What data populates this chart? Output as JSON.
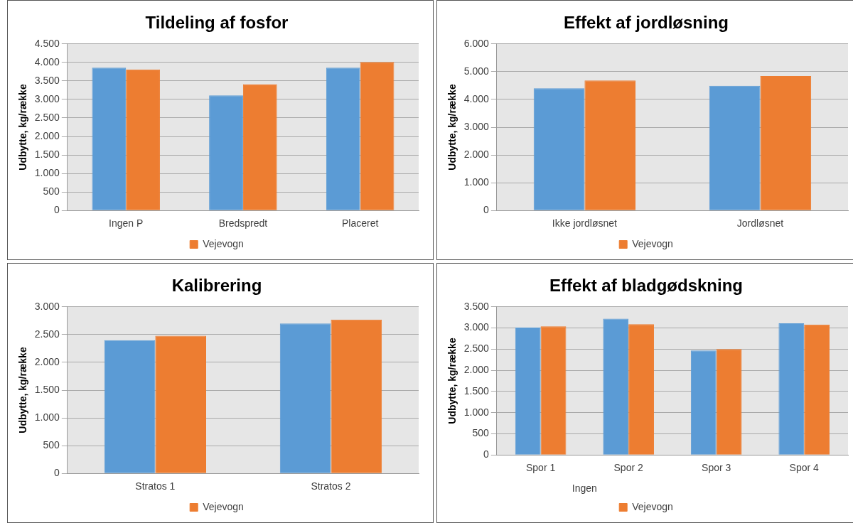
{
  "chart_data": [
    {
      "type": "bar",
      "title": "Tildeling af fosfor",
      "ylabel": "Udbytte, kg/række",
      "categories": [
        "Ingen P",
        "Bredspredt",
        "Placeret"
      ],
      "series": [
        {
          "color": "#5b9bd5",
          "values": [
            3860,
            3110,
            3860
          ]
        },
        {
          "name": "Vejevogn",
          "color": "#ed7d31",
          "values": [
            3810,
            3410,
            4010
          ]
        }
      ],
      "ylim": [
        0,
        4500
      ],
      "yticks": [
        {
          "value": 0,
          "label": "0"
        },
        {
          "value": 500,
          "label": "500"
        },
        {
          "value": 1000,
          "label": "1.000"
        },
        {
          "value": 1500,
          "label": "1.500"
        },
        {
          "value": 2000,
          "label": "2.000"
        },
        {
          "value": 2500,
          "label": "2.500"
        },
        {
          "value": 3000,
          "label": "3.000"
        },
        {
          "value": 3500,
          "label": "3.500"
        },
        {
          "value": 4000,
          "label": "4.000"
        },
        {
          "value": 4500,
          "label": "4.500"
        }
      ],
      "grid": "y",
      "legend": "bottom"
    },
    {
      "type": "bar",
      "title": "Effekt af jordløsning",
      "ylabel": "Udbytte, kg/række",
      "categories": [
        "Ikke jordløsnet",
        "Jordløsnet"
      ],
      "series": [
        {
          "color": "#5b9bd5",
          "values": [
            4400,
            4490
          ]
        },
        {
          "name": "Vejevogn",
          "color": "#ed7d31",
          "values": [
            4680,
            4840
          ]
        }
      ],
      "ylim": [
        0,
        6000
      ],
      "yticks": [
        {
          "value": 0,
          "label": "0"
        },
        {
          "value": 1000,
          "label": "1.000"
        },
        {
          "value": 2000,
          "label": "2.000"
        },
        {
          "value": 3000,
          "label": "3.000"
        },
        {
          "value": 4000,
          "label": "4.000"
        },
        {
          "value": 5000,
          "label": "5.000"
        },
        {
          "value": 6000,
          "label": "6.000"
        }
      ],
      "grid": "y",
      "legend": "bottom"
    },
    {
      "type": "bar",
      "title": "Kalibrering",
      "ylabel": "Udbytte, kg/række",
      "categories": [
        "Stratos 1",
        "Stratos 2"
      ],
      "series": [
        {
          "color": "#5b9bd5",
          "values": [
            2400,
            2700
          ]
        },
        {
          "name": "Vejevogn",
          "color": "#ed7d31",
          "values": [
            2480,
            2770
          ]
        }
      ],
      "ylim": [
        0,
        3000
      ],
      "yticks": [
        {
          "value": 0,
          "label": "0"
        },
        {
          "value": 500,
          "label": "500"
        },
        {
          "value": 1000,
          "label": "1.000"
        },
        {
          "value": 1500,
          "label": "1.500"
        },
        {
          "value": 2000,
          "label": "2.000"
        },
        {
          "value": 2500,
          "label": "2.500"
        },
        {
          "value": 3000,
          "label": "3.000"
        }
      ],
      "grid": "y",
      "legend": "bottom"
    },
    {
      "type": "bar",
      "title": "Effekt af bladgødskning",
      "ylabel": "Udbytte, kg/række",
      "categories": [
        "Spor 1",
        "Spor 2",
        "Spor 3",
        "Spor 4"
      ],
      "series": [
        {
          "color": "#5b9bd5",
          "values": [
            3010,
            3220,
            2470,
            3110
          ]
        },
        {
          "name": "Vejevogn",
          "color": "#ed7d31",
          "values": [
            3040,
            3090,
            2500,
            3080
          ]
        }
      ],
      "ylim": [
        0,
        3500
      ],
      "yticks": [
        {
          "value": 0,
          "label": "0"
        },
        {
          "value": 500,
          "label": "500"
        },
        {
          "value": 1000,
          "label": "1.000"
        },
        {
          "value": 1500,
          "label": "1.500"
        },
        {
          "value": 2000,
          "label": "2.000"
        },
        {
          "value": 2500,
          "label": "2.500"
        },
        {
          "value": 3000,
          "label": "3.000"
        },
        {
          "value": 3500,
          "label": "3.500"
        }
      ],
      "grid": "y",
      "legend": "bottom",
      "annotations": [
        "Ingen"
      ]
    }
  ]
}
